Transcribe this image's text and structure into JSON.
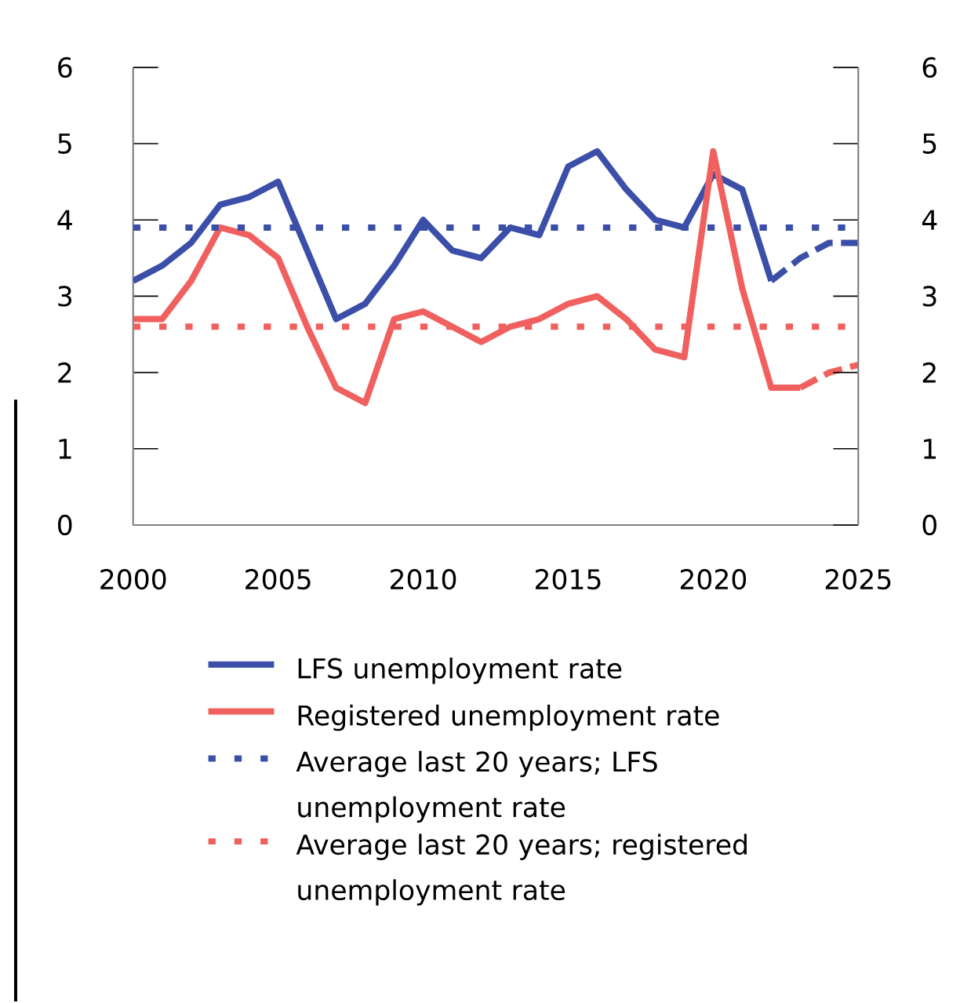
{
  "chart_data": {
    "type": "line",
    "x": [
      2000,
      2001,
      2002,
      2003,
      2004,
      2005,
      2006,
      2007,
      2008,
      2009,
      2010,
      2011,
      2012,
      2013,
      2014,
      2015,
      2016,
      2017,
      2018,
      2019,
      2020,
      2021,
      2022,
      2023,
      2024,
      2025
    ],
    "series": [
      {
        "name": "LFS unemployment rate",
        "color": "#3b4fa8",
        "line_style": "solid",
        "values": [
          3.2,
          3.4,
          3.7,
          4.2,
          4.3,
          4.5,
          3.6,
          2.7,
          2.9,
          3.4,
          4.0,
          3.6,
          3.5,
          3.9,
          3.8,
          4.7,
          4.9,
          4.4,
          4.0,
          3.9,
          4.6,
          4.4,
          3.2,
          null,
          null,
          null
        ]
      },
      {
        "name": "Registered unemployment rate",
        "color": "#f0605f",
        "line_style": "solid",
        "values": [
          2.7,
          2.7,
          3.2,
          3.9,
          3.8,
          3.5,
          2.6,
          1.8,
          1.6,
          2.7,
          2.8,
          2.6,
          2.4,
          2.6,
          2.7,
          2.9,
          3.0,
          2.7,
          2.3,
          2.2,
          4.9,
          3.1,
          1.8,
          1.8,
          null,
          null
        ]
      },
      {
        "name": "Average last 20 years; LFS unemployment rate",
        "color": "#3b4fa8",
        "line_style": "dotted",
        "values": [
          3.9,
          3.9,
          3.9,
          3.9,
          3.9,
          3.9,
          3.9,
          3.9,
          3.9,
          3.9,
          3.9,
          3.9,
          3.9,
          3.9,
          3.9,
          3.9,
          3.9,
          3.9,
          3.9,
          3.9,
          3.9,
          3.9,
          3.9,
          3.9,
          3.9,
          3.9
        ]
      },
      {
        "name": "Average last 20 years; registered unemployment rate",
        "color": "#f0605f",
        "line_style": "dotted",
        "values": [
          2.6,
          2.6,
          2.6,
          2.6,
          2.6,
          2.6,
          2.6,
          2.6,
          2.6,
          2.6,
          2.6,
          2.6,
          2.6,
          2.6,
          2.6,
          2.6,
          2.6,
          2.6,
          2.6,
          2.6,
          2.6,
          2.6,
          2.6,
          2.6,
          2.6,
          2.6
        ]
      },
      {
        "color": "#3b4fa8",
        "line_style": "dashed",
        "values": [
          null,
          null,
          null,
          null,
          null,
          null,
          null,
          null,
          null,
          null,
          null,
          null,
          null,
          null,
          null,
          null,
          null,
          null,
          null,
          null,
          null,
          null,
          3.2,
          3.5,
          3.7,
          3.7
        ]
      },
      {
        "color": "#f0605f",
        "line_style": "dashed",
        "values": [
          null,
          null,
          null,
          null,
          null,
          null,
          null,
          null,
          null,
          null,
          null,
          null,
          null,
          null,
          null,
          null,
          null,
          null,
          null,
          null,
          null,
          null,
          null,
          1.8,
          2.0,
          2.1
        ]
      }
    ],
    "xlim": [
      2000,
      2025
    ],
    "xticks": [
      2000,
      2005,
      2010,
      2015,
      2020,
      2025
    ],
    "ylim": [
      0,
      6
    ],
    "yticks": [
      0,
      1,
      2,
      3,
      4,
      5,
      6
    ],
    "y2lim": [
      0,
      6
    ],
    "y2ticks": [
      0,
      1,
      2,
      3,
      4,
      5,
      6
    ],
    "grid": false,
    "legend": "bottom"
  }
}
